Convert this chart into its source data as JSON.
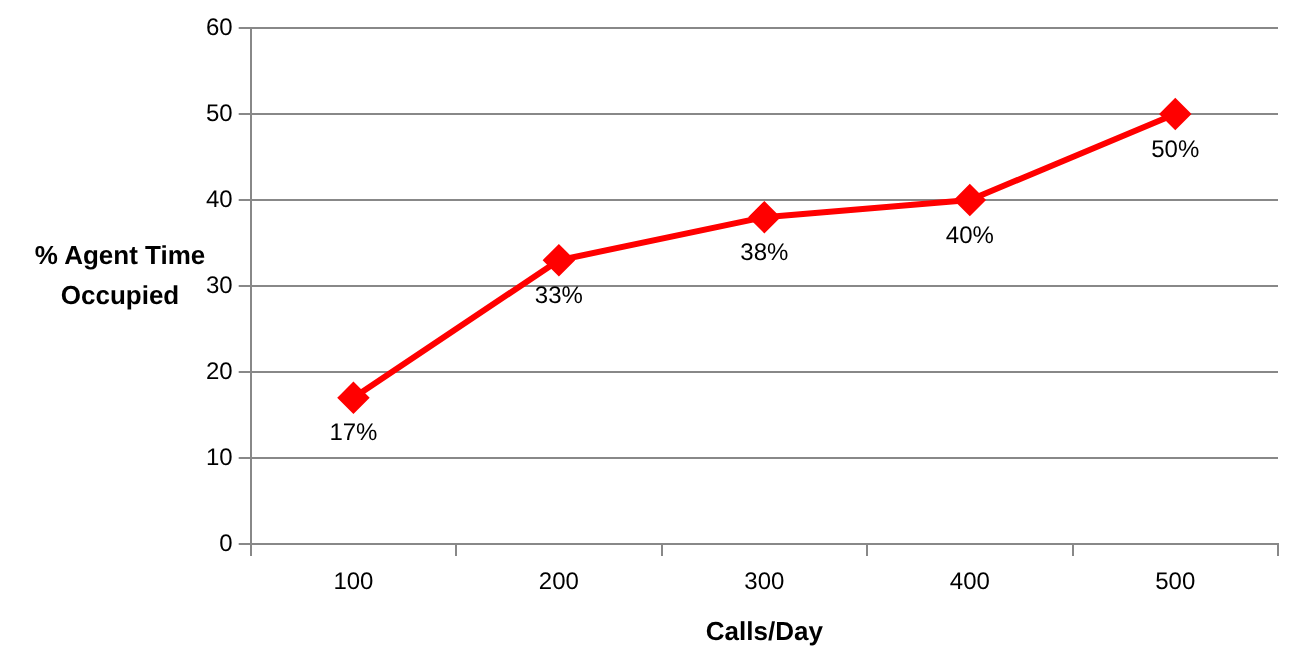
{
  "chart_data": {
    "type": "line",
    "xlabel": "Calls/Day",
    "ylabel": "% Agent Time Occupied",
    "categories": [
      "100",
      "200",
      "300",
      "400",
      "500"
    ],
    "series": [
      {
        "color": "#ff0000",
        "values": [
          17,
          33,
          38,
          40,
          50
        ],
        "value_labels": [
          "17%",
          "33%",
          "38%",
          "40%",
          "50%"
        ]
      }
    ],
    "ylim": [
      0,
      60
    ],
    "yticks": [
      0,
      10,
      20,
      30,
      40,
      50,
      60
    ],
    "grid": "y",
    "legend": false,
    "marker": "diamond",
    "line_style": "solid"
  }
}
